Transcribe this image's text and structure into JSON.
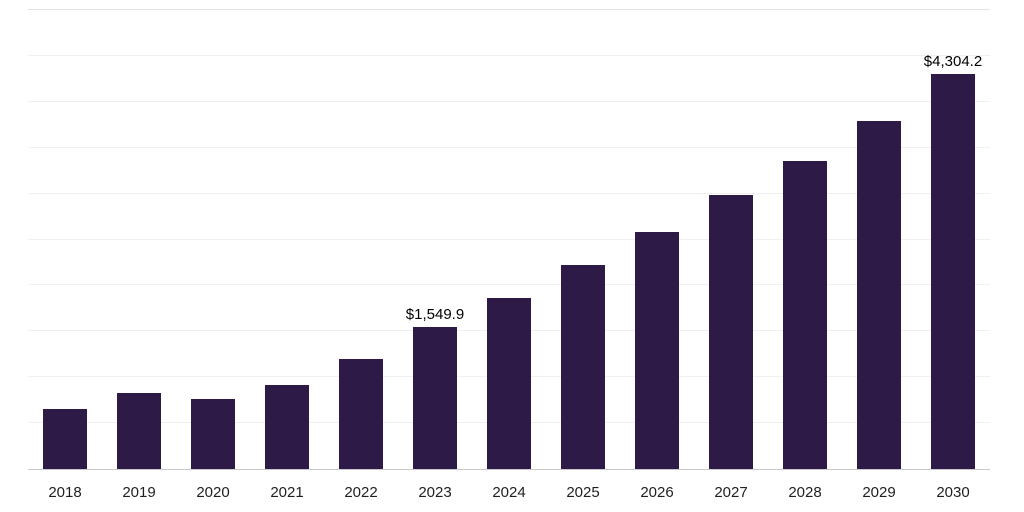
{
  "chart_data": {
    "type": "bar",
    "title": "",
    "xlabel": "",
    "ylabel": "",
    "categories": [
      "2018",
      "2019",
      "2020",
      "2021",
      "2022",
      "2023",
      "2024",
      "2025",
      "2026",
      "2027",
      "2028",
      "2029",
      "2030"
    ],
    "values": [
      650,
      830,
      760,
      920,
      1200,
      1549.9,
      1860,
      2220,
      2580,
      2980,
      3360,
      3790,
      4304.2
    ],
    "ylim": [
      0,
      5000
    ],
    "gridline_step": 500,
    "grid": "horizontal",
    "legend": null,
    "bar_color": "#2e1a47",
    "data_labels": [
      {
        "index": 5,
        "text": "$1,549.9"
      },
      {
        "index": 12,
        "text": "$4,304.2"
      }
    ]
  }
}
